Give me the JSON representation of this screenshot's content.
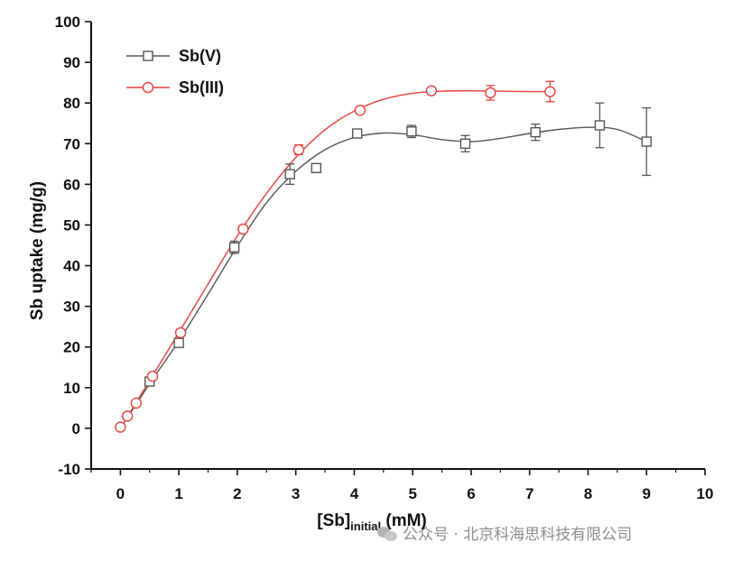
{
  "chart_data": {
    "type": "line",
    "title": "",
    "xlabel": {
      "main": "[Sb]",
      "sub": "initial",
      "unit": " (mM)"
    },
    "ylabel": "Sb uptake (mg/g)",
    "xlim": [
      -0.5,
      10
    ],
    "ylim": [
      -10,
      100
    ],
    "x_ticks": [
      0,
      1,
      2,
      3,
      4,
      5,
      6,
      7,
      8,
      9,
      10
    ],
    "y_ticks": [
      -10,
      0,
      10,
      20,
      30,
      40,
      50,
      60,
      70,
      80,
      90,
      100
    ],
    "legend_position": "top-left",
    "series": [
      {
        "name": "Sb(V)",
        "color": "#555555",
        "marker": "square",
        "x": [
          0.5,
          1.0,
          1.95,
          2.9,
          3.35,
          4.05,
          4.98,
          5.9,
          7.1,
          8.2,
          9.0
        ],
        "y": [
          11.5,
          21.0,
          44.5,
          62.5,
          64.0,
          72.5,
          73.0,
          70.0,
          72.8,
          74.5,
          70.5
        ],
        "err": [
          0.8,
          0.8,
          1.5,
          2.5,
          0.8,
          1.0,
          1.5,
          2.0,
          2.0,
          5.5,
          8.3
        ],
        "fit": [
          [
            0,
            0
          ],
          [
            0.5,
            11
          ],
          [
            1,
            21.5
          ],
          [
            1.5,
            33
          ],
          [
            2,
            44.8
          ],
          [
            2.5,
            55.5
          ],
          [
            3,
            63.2
          ],
          [
            3.5,
            68.5
          ],
          [
            4,
            71.5
          ],
          [
            4.5,
            72.6
          ],
          [
            5,
            72.2
          ],
          [
            5.5,
            71
          ],
          [
            6,
            70.5
          ],
          [
            6.5,
            71.3
          ],
          [
            7,
            72.5
          ],
          [
            7.5,
            73.5
          ],
          [
            8,
            74
          ],
          [
            8.5,
            73.5
          ],
          [
            9,
            70.5
          ]
        ]
      },
      {
        "name": "Sb(III)",
        "color": "#e8403a",
        "marker": "circle",
        "x": [
          0.0,
          0.12,
          0.27,
          0.55,
          1.03,
          2.1,
          3.05,
          4.1,
          5.32,
          6.33,
          7.35
        ],
        "y": [
          0.3,
          3.0,
          6.2,
          12.8,
          23.5,
          49.0,
          68.5,
          78.2,
          83.0,
          82.5,
          82.8
        ],
        "err": [
          0.5,
          0.5,
          0.6,
          0.6,
          0.8,
          0.8,
          1.2,
          0.8,
          0.6,
          1.8,
          2.5
        ],
        "fit": [
          [
            0,
            0
          ],
          [
            0.5,
            11.8
          ],
          [
            1,
            23.5
          ],
          [
            1.5,
            35.5
          ],
          [
            2,
            47.3
          ],
          [
            2.5,
            57.8
          ],
          [
            3,
            66.6
          ],
          [
            3.5,
            73.4
          ],
          [
            4,
            78
          ],
          [
            4.5,
            80.9
          ],
          [
            5,
            82.4
          ],
          [
            5.5,
            82.9
          ],
          [
            6,
            83
          ],
          [
            6.5,
            82.9
          ],
          [
            7,
            82.8
          ],
          [
            7.35,
            82.8
          ]
        ]
      }
    ]
  },
  "watermark": {
    "text": "公众号 · 北京科海思科技有限公司",
    "icon": "wechat-icon"
  }
}
